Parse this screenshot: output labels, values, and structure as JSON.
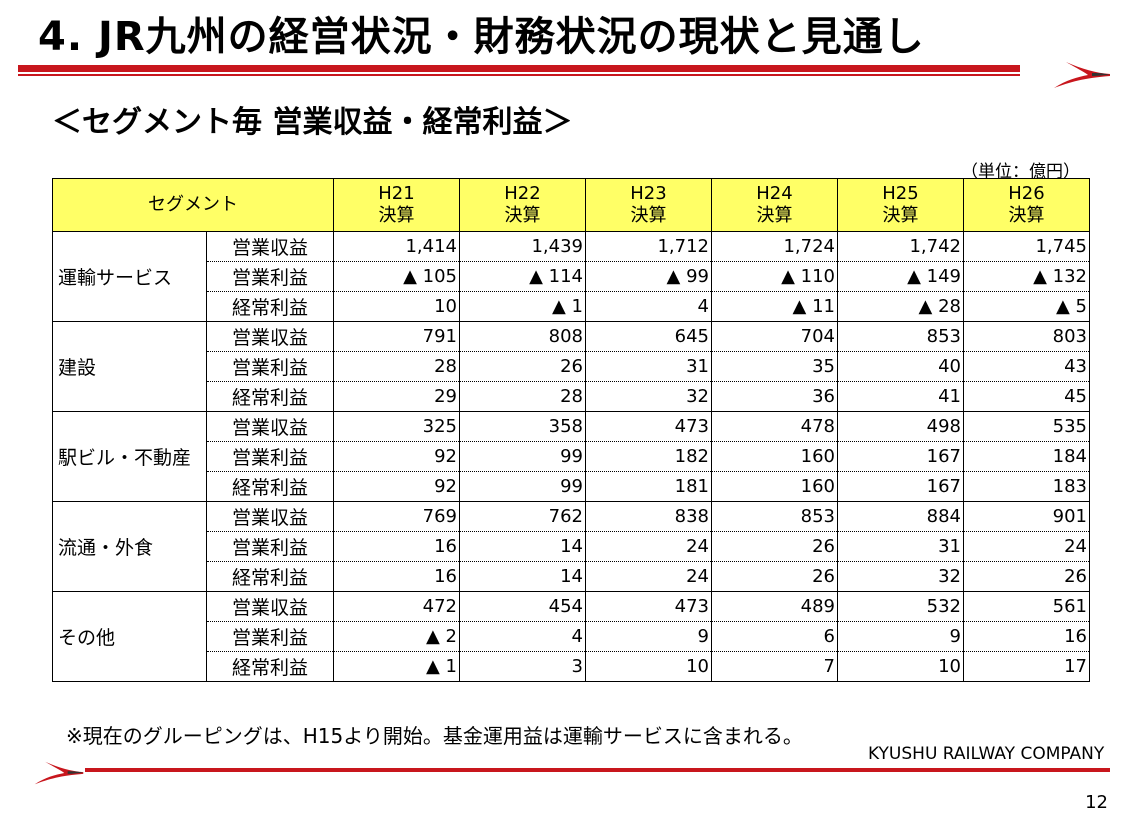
{
  "title": "4. JR九州の経営状況・財務状況の現状と見通し",
  "subtitle": "＜セグメント毎 営業収益・経常利益＞",
  "unit": "（単位：億円）",
  "table": {
    "segment_header": "セグメント",
    "years": [
      {
        "year": "H21",
        "type": "決算"
      },
      {
        "year": "H22",
        "type": "決算"
      },
      {
        "year": "H23",
        "type": "決算"
      },
      {
        "year": "H24",
        "type": "決算"
      },
      {
        "year": "H25",
        "type": "決算"
      },
      {
        "year": "H26",
        "type": "決算"
      }
    ],
    "groups": [
      {
        "name": "運輸サービス",
        "rows": [
          {
            "metric": "営業収益",
            "values": [
              "1,414",
              "1,439",
              "1,712",
              "1,724",
              "1,742",
              "1,745"
            ]
          },
          {
            "metric": "営業利益",
            "values": [
              "▲ 105",
              "▲ 114",
              "▲ 99",
              "▲ 110",
              "▲ 149",
              "▲ 132"
            ]
          },
          {
            "metric": "経常利益",
            "values": [
              "10",
              "▲ 1",
              "4",
              "▲ 11",
              "▲ 28",
              "▲ 5"
            ]
          }
        ]
      },
      {
        "name": "建設",
        "rows": [
          {
            "metric": "営業収益",
            "values": [
              "791",
              "808",
              "645",
              "704",
              "853",
              "803"
            ]
          },
          {
            "metric": "営業利益",
            "values": [
              "28",
              "26",
              "31",
              "35",
              "40",
              "43"
            ]
          },
          {
            "metric": "経常利益",
            "values": [
              "29",
              "28",
              "32",
              "36",
              "41",
              "45"
            ]
          }
        ]
      },
      {
        "name": "駅ビル・不動産",
        "rows": [
          {
            "metric": "営業収益",
            "values": [
              "325",
              "358",
              "473",
              "478",
              "498",
              "535"
            ]
          },
          {
            "metric": "営業利益",
            "values": [
              "92",
              "99",
              "182",
              "160",
              "167",
              "184"
            ]
          },
          {
            "metric": "経常利益",
            "values": [
              "92",
              "99",
              "181",
              "160",
              "167",
              "183"
            ]
          }
        ]
      },
      {
        "name": "流通・外食",
        "rows": [
          {
            "metric": "営業収益",
            "values": [
              "769",
              "762",
              "838",
              "853",
              "884",
              "901"
            ]
          },
          {
            "metric": "営業利益",
            "values": [
              "16",
              "14",
              "24",
              "26",
              "31",
              "24"
            ]
          },
          {
            "metric": "経常利益",
            "values": [
              "16",
              "14",
              "24",
              "26",
              "32",
              "26"
            ]
          }
        ]
      },
      {
        "name": "その他",
        "rows": [
          {
            "metric": "営業収益",
            "values": [
              "472",
              "454",
              "473",
              "489",
              "532",
              "561"
            ]
          },
          {
            "metric": "営業利益",
            "values": [
              "▲ 2",
              "4",
              "9",
              "6",
              "9",
              "16"
            ]
          },
          {
            "metric": "経常利益",
            "values": [
              "▲ 1",
              "3",
              "10",
              "7",
              "10",
              "17"
            ]
          }
        ]
      }
    ]
  },
  "note": "※現在のグルーピングは、H15より開始。基金運用益は運輸サービスに含まれる。",
  "company": "KYUSHU RAILWAY COMPANY",
  "page_number": "12",
  "colors": {
    "accent_red": "#c8161d",
    "header_yellow": "#ffff66"
  },
  "icons": {
    "logo": "swallow-logo-icon"
  }
}
